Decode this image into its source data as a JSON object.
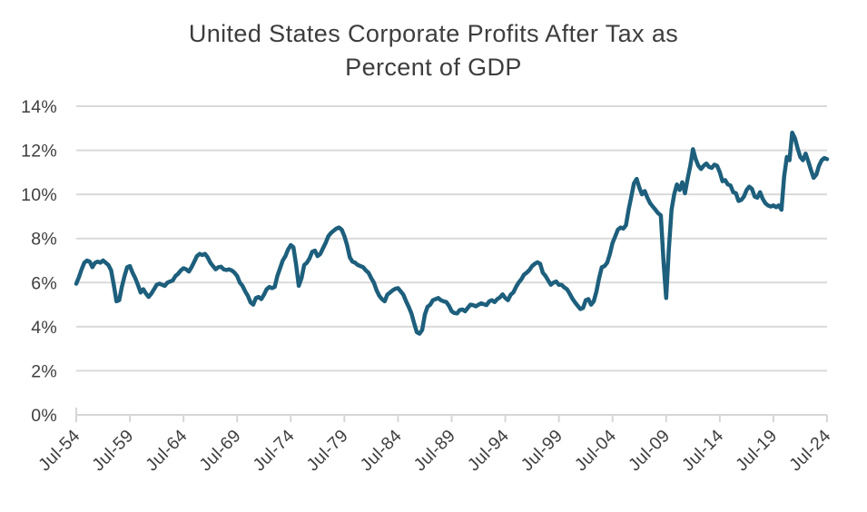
{
  "title": {
    "line1": "United States Corporate Profits After Tax as",
    "line2": "Percent of GDP"
  },
  "colors": {
    "line": "#1d5f7c",
    "grid": "#d9d9d9",
    "axis": "#d6d6d6",
    "tick": "#d6d6d6",
    "label_text": "#3f3f3f",
    "title_text": "#3d3d3d",
    "background": "#ffffff"
  },
  "chart_data": {
    "type": "line",
    "title": "United States Corporate Profits After Tax as Percent of GDP",
    "xlabel": "",
    "ylabel": "",
    "ylim": [
      0,
      14
    ],
    "xlim": [
      1954.5,
      2024.5
    ],
    "grid": "horizontal",
    "legend_position": "none",
    "y_tick_values": [
      0,
      2,
      4,
      6,
      8,
      10,
      12,
      14
    ],
    "y_tick_labels": [
      "0%",
      "2%",
      "4%",
      "6%",
      "8%",
      "10%",
      "12%",
      "14%"
    ],
    "x_tick_values": [
      1954.5,
      1959.5,
      1964.5,
      1969.5,
      1974.5,
      1979.5,
      1984.5,
      1989.5,
      1994.5,
      1999.5,
      2004.5,
      2009.5,
      2014.5,
      2019.5,
      2024.5
    ],
    "x_tick_labels": [
      "Jul-54",
      "Jul-59",
      "Jul-64",
      "Jul-69",
      "Jul-74",
      "Jul-79",
      "Jul-84",
      "Jul-89",
      "Jul-94",
      "Jul-99",
      "Jul-04",
      "Jul-09",
      "Jul-14",
      "Jul-19",
      "Jul-24"
    ],
    "series": [
      {
        "name": "Corporate profits after tax as percent of GDP",
        "color": "#1d5f7c",
        "x_start": 1954.5,
        "x_step": 0.25,
        "values": [
          5.95,
          6.25,
          6.6,
          6.9,
          7.0,
          6.95,
          6.7,
          6.9,
          6.95,
          6.9,
          7.0,
          6.9,
          6.8,
          6.55,
          5.9,
          5.15,
          5.2,
          5.8,
          6.3,
          6.7,
          6.75,
          6.45,
          6.2,
          5.9,
          5.55,
          5.7,
          5.5,
          5.35,
          5.5,
          5.7,
          5.9,
          5.95,
          5.9,
          5.85,
          6.0,
          6.05,
          6.1,
          6.3,
          6.4,
          6.55,
          6.65,
          6.6,
          6.5,
          6.7,
          6.95,
          7.2,
          7.3,
          7.25,
          7.3,
          7.15,
          6.9,
          6.75,
          6.6,
          6.7,
          6.72,
          6.6,
          6.57,
          6.6,
          6.55,
          6.45,
          6.3,
          6.0,
          5.85,
          5.6,
          5.4,
          5.1,
          5.0,
          5.3,
          5.35,
          5.25,
          5.45,
          5.7,
          5.8,
          5.75,
          5.8,
          6.3,
          6.65,
          7.0,
          7.2,
          7.5,
          7.7,
          7.6,
          6.8,
          5.85,
          6.2,
          6.8,
          6.9,
          7.1,
          7.4,
          7.45,
          7.2,
          7.3,
          7.55,
          7.8,
          8.1,
          8.25,
          8.35,
          8.45,
          8.5,
          8.4,
          8.1,
          7.7,
          7.15,
          6.95,
          6.9,
          6.8,
          6.75,
          6.7,
          6.55,
          6.45,
          6.2,
          6.0,
          5.65,
          5.4,
          5.25,
          5.15,
          5.45,
          5.55,
          5.65,
          5.72,
          5.75,
          5.6,
          5.45,
          5.15,
          4.9,
          4.6,
          4.15,
          3.75,
          3.68,
          3.85,
          4.55,
          4.9,
          5.0,
          5.2,
          5.25,
          5.3,
          5.2,
          5.15,
          5.12,
          4.95,
          4.7,
          4.62,
          4.6,
          4.75,
          4.78,
          4.7,
          4.85,
          5.0,
          4.98,
          4.92,
          5.0,
          5.06,
          5.02,
          4.98,
          5.15,
          5.2,
          5.12,
          5.25,
          5.33,
          5.47,
          5.3,
          5.2,
          5.45,
          5.55,
          5.8,
          6.0,
          6.15,
          6.36,
          6.45,
          6.57,
          6.75,
          6.85,
          6.92,
          6.85,
          6.45,
          6.3,
          6.1,
          5.9,
          6.0,
          6.05,
          5.9,
          5.9,
          5.78,
          5.7,
          5.5,
          5.28,
          5.1,
          4.95,
          4.8,
          4.85,
          5.2,
          5.25,
          5.0,
          5.15,
          5.6,
          6.2,
          6.7,
          6.75,
          6.9,
          7.3,
          7.8,
          8.1,
          8.4,
          8.5,
          8.45,
          8.6,
          9.3,
          9.9,
          10.5,
          10.7,
          10.3,
          10.0,
          10.15,
          9.85,
          9.6,
          9.45,
          9.3,
          9.15,
          9.05,
          7.0,
          5.3,
          7.5,
          9.3,
          10.0,
          10.45,
          10.2,
          10.55,
          10.05,
          10.7,
          11.3,
          12.05,
          11.6,
          11.3,
          11.15,
          11.3,
          11.4,
          11.25,
          11.2,
          11.35,
          11.3,
          11.0,
          10.6,
          10.65,
          10.45,
          10.4,
          10.1,
          10.05,
          9.7,
          9.75,
          9.9,
          10.2,
          10.35,
          10.25,
          9.9,
          9.85,
          10.1,
          9.8,
          9.6,
          9.5,
          9.45,
          9.5,
          9.42,
          9.5,
          9.3,
          10.8,
          11.7,
          11.55,
          12.8,
          12.55,
          12.1,
          11.7,
          11.55,
          11.85,
          11.5,
          11.1,
          10.75,
          10.9,
          11.3,
          11.55,
          11.65,
          11.6
        ]
      }
    ]
  }
}
